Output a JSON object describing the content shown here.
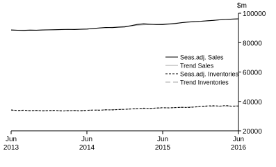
{
  "chart_data": {
    "type": "line",
    "y_unit": "$m",
    "categories": [
      "Jun 2013",
      null,
      null,
      null,
      null,
      null,
      null,
      null,
      null,
      null,
      null,
      null,
      "Jun 2014",
      null,
      null,
      null,
      null,
      null,
      null,
      null,
      null,
      null,
      null,
      null,
      "Jun 2015",
      null,
      null,
      null,
      null,
      null,
      null,
      null,
      null,
      null,
      null,
      null,
      "Jun 2016"
    ],
    "series": [
      {
        "name": "Seas.adj. Sales",
        "color": "#000000",
        "dash": "none",
        "values": [
          88600,
          88400,
          88300,
          88500,
          88400,
          88600,
          88700,
          88800,
          88900,
          89000,
          88900,
          89100,
          89200,
          89600,
          90000,
          90300,
          90200,
          90500,
          90700,
          91500,
          92400,
          92800,
          92500,
          92300,
          92300,
          92600,
          93000,
          93600,
          94000,
          94300,
          94500,
          94800,
          95100,
          95500,
          95800,
          96000,
          96200
        ]
      },
      {
        "name": "Trend Sales",
        "color": "#a6a6a6",
        "dash": "none",
        "values": [
          88500,
          88450,
          88450,
          88480,
          88520,
          88600,
          88680,
          88760,
          88850,
          88940,
          89040,
          89160,
          89320,
          89560,
          89860,
          90150,
          90420,
          90700,
          91050,
          91450,
          91850,
          92150,
          92350,
          92480,
          92620,
          92850,
          93180,
          93550,
          93920,
          94250,
          94560,
          94860,
          95150,
          95450,
          95720,
          95960,
          96150
        ]
      },
      {
        "name": "Seas.adj. Inventories",
        "color": "#000000",
        "dash": "3,2",
        "values": [
          34200,
          33800,
          34000,
          33700,
          33900,
          33600,
          33800,
          33900,
          33500,
          33700,
          33800,
          33600,
          33900,
          34100,
          34000,
          34300,
          34200,
          34500,
          34600,
          34900,
          35100,
          35400,
          35200,
          35500,
          35700,
          35600,
          35800,
          36000,
          35900,
          36200,
          36600,
          36900,
          37100,
          36800,
          37200,
          36700,
          36900
        ]
      },
      {
        "name": "Trend Inventories",
        "color": "#a6a6a6",
        "dash": "7,4",
        "values": [
          33950,
          33900,
          33850,
          33810,
          33780,
          33760,
          33750,
          33760,
          33780,
          33810,
          33850,
          33900,
          33980,
          34070,
          34170,
          34280,
          34400,
          34530,
          34670,
          34820,
          34980,
          35140,
          35290,
          35430,
          35560,
          35680,
          35800,
          35930,
          36070,
          36220,
          36380,
          36530,
          36660,
          36760,
          36830,
          36870,
          36890
        ]
      }
    ],
    "ylim": [
      20000,
      100000
    ],
    "yticks": [
      20000,
      40000,
      60000,
      80000,
      100000
    ]
  }
}
